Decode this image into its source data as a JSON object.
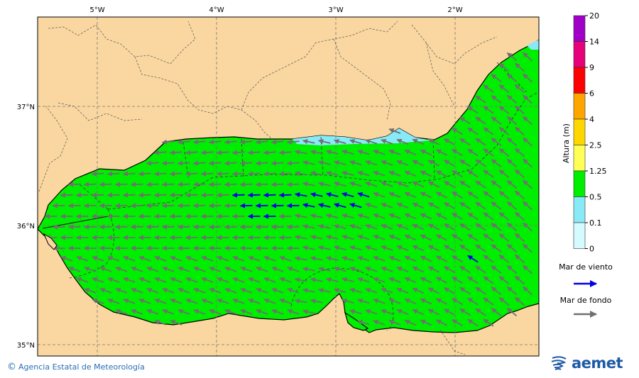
{
  "map": {
    "longitude_labels": [
      "5°W",
      "4°W",
      "3°W",
      "2°W"
    ],
    "latitude_labels": [
      "37°N",
      "36°N",
      "35°N"
    ],
    "colors": {
      "land": "#fad7a0",
      "water_band_0_1_0_5": "#88e9f7",
      "water_band_0_5_1_25": "#00ee00",
      "wind_sea_arrow": "#0000e6",
      "swell_arrow": "#707070"
    }
  },
  "legend": {
    "axis_title": "Altura (m)",
    "levels": [
      {
        "label": "20",
        "color": "#a000c8"
      },
      {
        "label": "14",
        "color": "#e6007a"
      },
      {
        "label": "9",
        "color": "#ff0000"
      },
      {
        "label": "6",
        "color": "#ffa500"
      },
      {
        "label": "4",
        "color": "#ffd700"
      },
      {
        "label": "2.5",
        "color": "#ffff55"
      },
      {
        "label": "1.25",
        "color": "#00ee00"
      },
      {
        "label": "0.5",
        "color": "#88e9f7"
      },
      {
        "label": "0.1",
        "color": "#d4fbff"
      },
      {
        "label": "0",
        "color": ""
      }
    ],
    "wind_sea_label": "Mar de viento",
    "swell_label": "Mar de fondo"
  },
  "footer": {
    "credit": "Agencia Estatal de Meteorología",
    "logo_text": "aemet",
    "logo_icon": "aemet-swirl-icon"
  }
}
